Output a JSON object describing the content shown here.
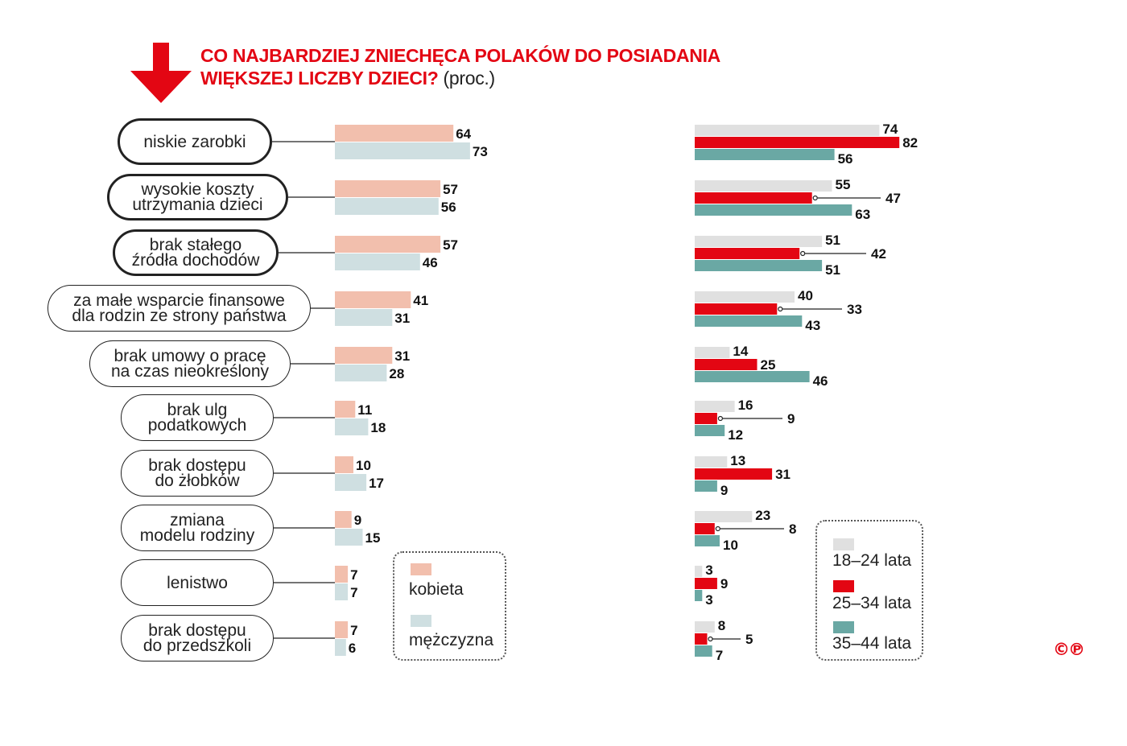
{
  "title": {
    "line1": "CO NAJBARDZIEJ ZNIECHĘCA POLAKÓW DO POSIADANIA",
    "line2": "WIĘKSZEJ LICZBY DZIECI?",
    "unit": "(proc.)"
  },
  "colors": {
    "title_red": "#e30613",
    "kobieta": "#f2bfad",
    "mezczyzna": "#cfdfe1",
    "age_18_24": "#e0e0e0",
    "age_25_34": "#e30613",
    "age_35_44": "#6aa8a4"
  },
  "icons": {
    "arrow": "red-down-arrow-icon",
    "copyright": "copyright-logo"
  },
  "copyright_mark": "©℗",
  "chart_data": [
    {
      "type": "bar",
      "orientation": "horizontal",
      "categories": [
        "niskie zarobki",
        "wysokie koszty\nutrzymania dzieci",
        "brak stałego\nźródła dochodów",
        "za małe wsparcie finansowe\ndla rodzin ze strony państwa",
        "brak umowy o pracę\nna czas nieokreślony",
        "brak ulg\npodatkowych",
        "brak dostępu\ndo żłobków",
        "zmiana\nmodelu rodziny",
        "lenistwo",
        "brak dostępu\ndo przedszkoli"
      ],
      "highlighted_categories": [
        0,
        1,
        2
      ],
      "series": [
        {
          "name": "kobieta",
          "values": [
            64,
            57,
            57,
            41,
            31,
            11,
            10,
            9,
            7,
            7
          ]
        },
        {
          "name": "mężczyzna",
          "values": [
            73,
            56,
            46,
            31,
            28,
            18,
            17,
            15,
            7,
            6
          ]
        }
      ],
      "legend": "bottom-right"
    },
    {
      "type": "bar",
      "orientation": "horizontal",
      "series": [
        {
          "name": "18–24 lata",
          "values": [
            74,
            55,
            51,
            40,
            14,
            16,
            13,
            23,
            3,
            8
          ]
        },
        {
          "name": "25–34 lata",
          "values": [
            82,
            47,
            42,
            33,
            25,
            9,
            31,
            8,
            9,
            5
          ]
        },
        {
          "name": "35–44 lata",
          "values": [
            56,
            63,
            51,
            43,
            46,
            12,
            9,
            10,
            3,
            7
          ]
        }
      ],
      "legend": "bottom-right"
    }
  ]
}
